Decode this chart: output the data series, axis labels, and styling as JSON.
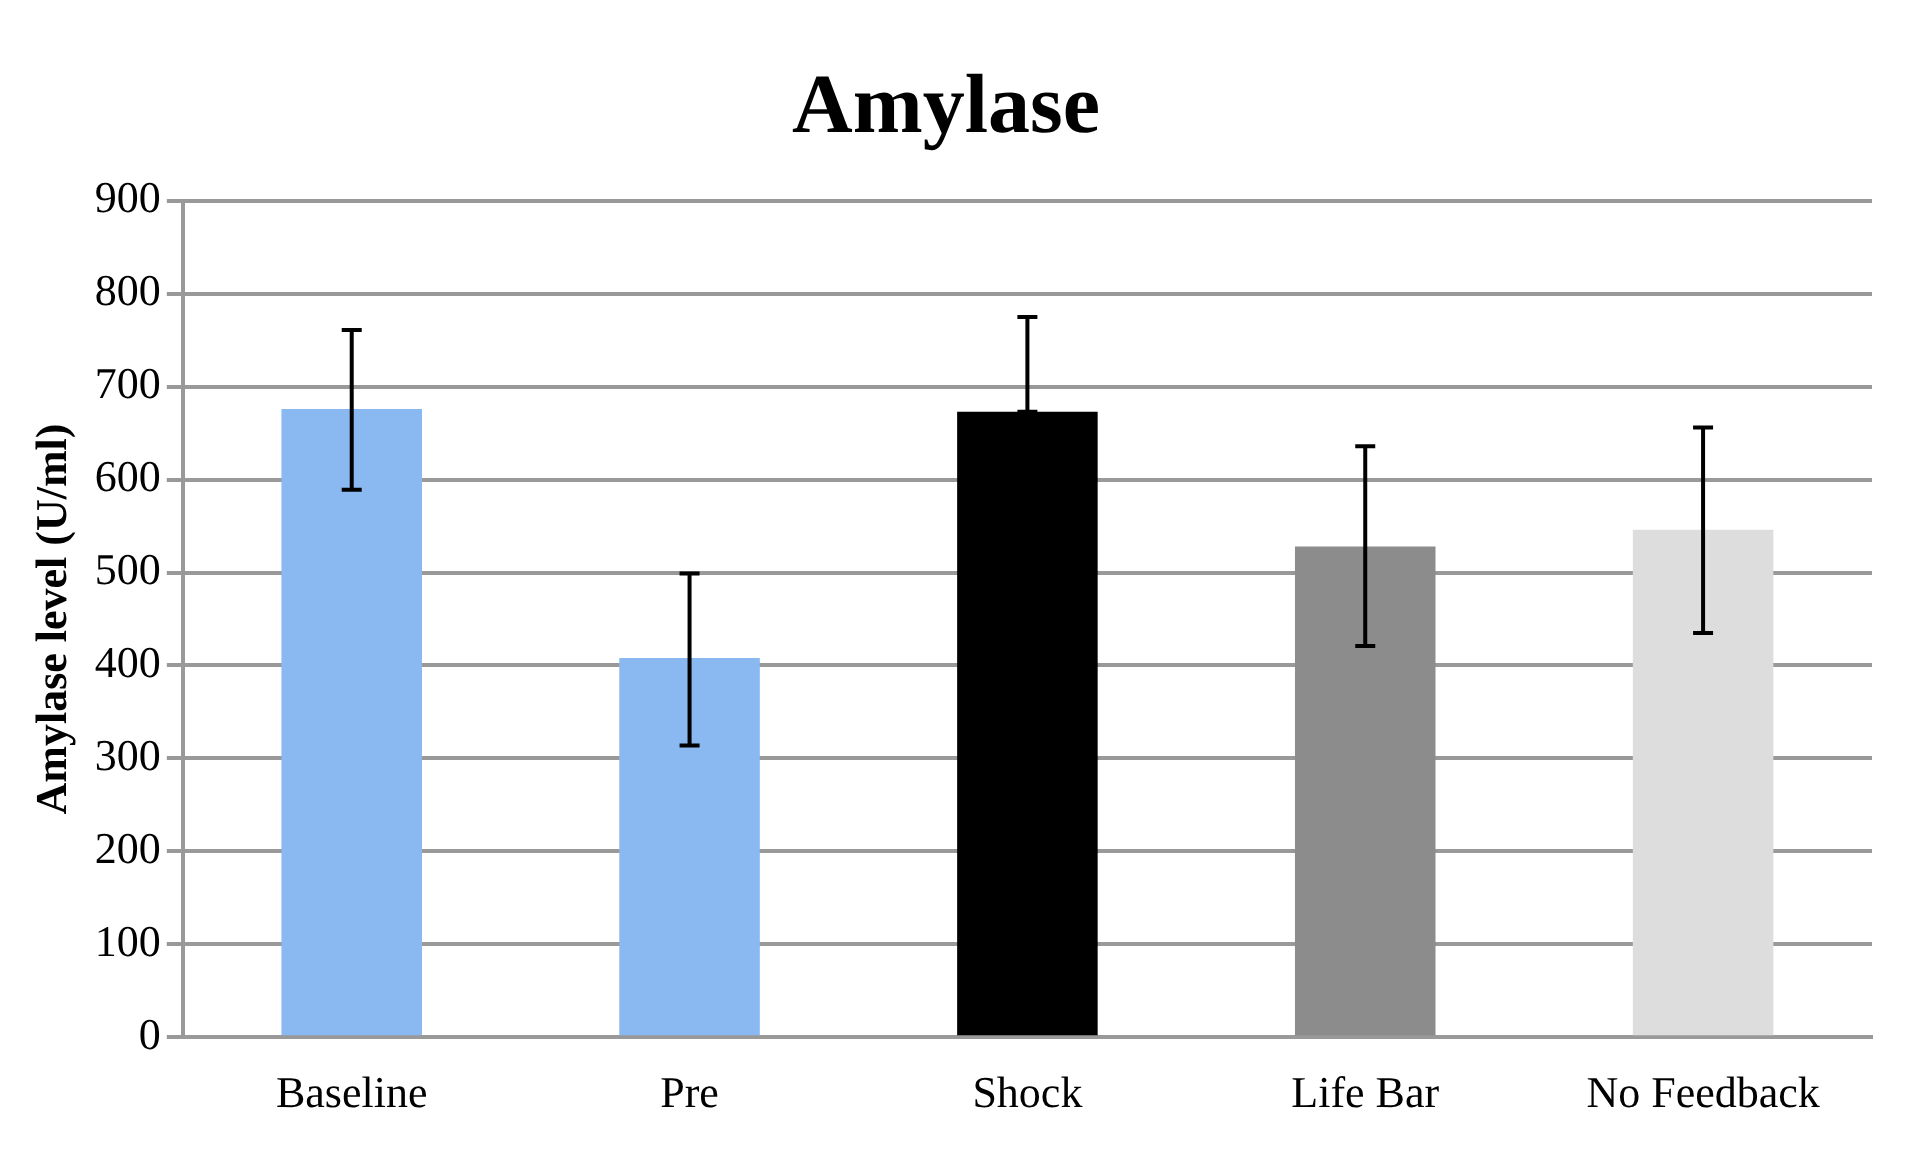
{
  "chart_data": {
    "type": "bar",
    "title": "Amylase",
    "ylabel": "Amylase level (U/ml)",
    "categories": [
      "Baseline",
      "Pre",
      "Shock",
      "Life Bar",
      "No Feedback"
    ],
    "values": [
      676,
      408,
      673,
      528,
      546
    ],
    "colors": [
      "#8ab8f0",
      "#8ab8f0",
      "#000000",
      "#8c8c8c",
      "#dddddd"
    ],
    "errors": [
      [
        589,
        761
      ],
      [
        314,
        499
      ],
      [
        673,
        775
      ],
      [
        421,
        636
      ],
      [
        435,
        656
      ]
    ],
    "ylim": [
      0,
      900
    ],
    "yticks": [
      0,
      100,
      200,
      300,
      400,
      500,
      600,
      700,
      800,
      900
    ],
    "grid": "y",
    "legend": false
  }
}
